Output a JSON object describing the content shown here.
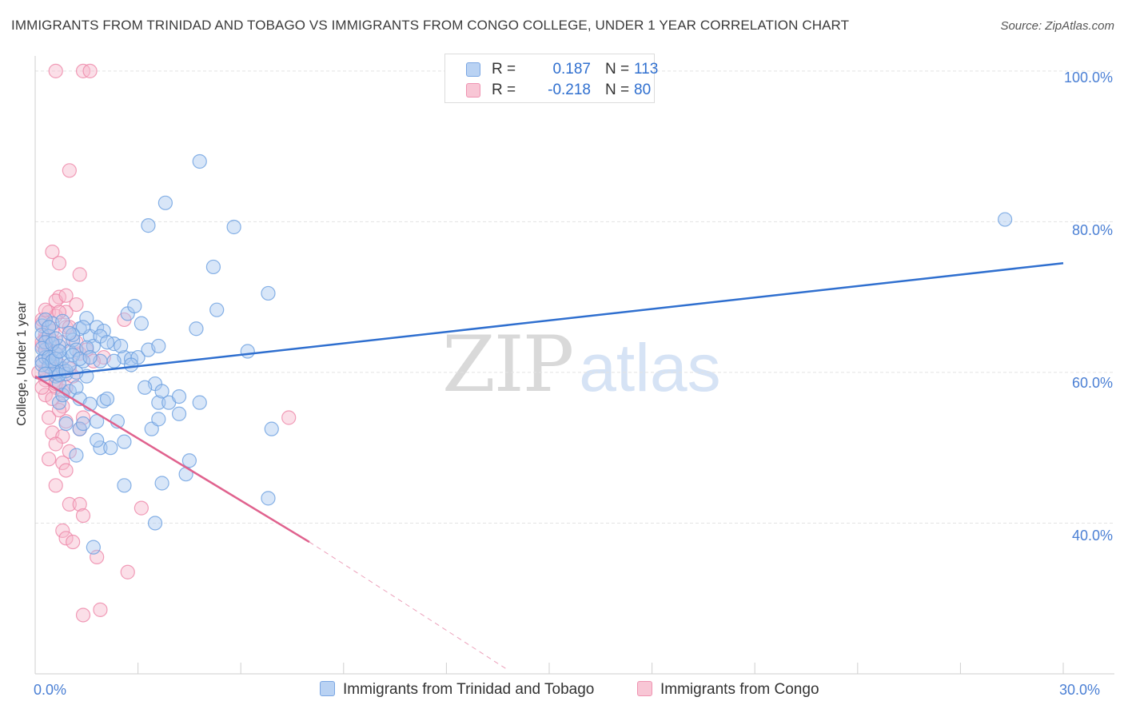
{
  "header": {
    "title": "IMMIGRANTS FROM TRINIDAD AND TOBAGO VS IMMIGRANTS FROM CONGO COLLEGE, UNDER 1 YEAR CORRELATION CHART",
    "source": "Source: ZipAtlas.com"
  },
  "watermark": {
    "zip": "ZIP",
    "atlas": "atlas"
  },
  "legend": {
    "r_label": "R =",
    "n_label": "N =",
    "rows": [
      {
        "r": "0.187",
        "n": "113"
      },
      {
        "r": "-0.218",
        "n": "80"
      }
    ]
  },
  "colors": {
    "blue_fill": "#a8c8f0",
    "blue_stroke": "#6a9fe0",
    "blue_line": "#2f6fcf",
    "pink_fill": "#f6b8cc",
    "pink_stroke": "#ee86a8",
    "pink_line": "#e0628e",
    "tick_text": "#4a7fd4"
  },
  "chart_data": {
    "type": "scatter",
    "title": "IMMIGRANTS FROM TRINIDAD AND TOBAGO VS IMMIGRANTS FROM CONGO COLLEGE, UNDER 1 YEAR CORRELATION CHART",
    "xlabel": "",
    "ylabel": "College, Under 1 year",
    "xlim": [
      0,
      30
    ],
    "ylim": [
      20,
      102
    ],
    "x_tick_labels": [
      "0.0%",
      "30.0%"
    ],
    "y_ticks": [
      40,
      60,
      80,
      100
    ],
    "y_tick_labels": [
      "40.0%",
      "60.0%",
      "80.0%",
      "100.0%"
    ],
    "grid": true,
    "legend_position": "top-center",
    "series": [
      {
        "name": "Immigrants from Trinidad and Tobago",
        "color": "blue",
        "R": 0.187,
        "N": 113,
        "trend": {
          "x": [
            0,
            30
          ],
          "y": [
            59.3,
            74.5
          ]
        },
        "points": [
          [
            0.2,
            66.2
          ],
          [
            0.2,
            65.0
          ],
          [
            0.3,
            63.0
          ],
          [
            0.2,
            61.5
          ],
          [
            0.4,
            64.8
          ],
          [
            0.3,
            62.0
          ],
          [
            0.5,
            61.0
          ],
          [
            0.6,
            59.5
          ],
          [
            0.7,
            58.5
          ],
          [
            0.8,
            60.5
          ],
          [
            0.9,
            59.8
          ],
          [
            0.5,
            66.5
          ],
          [
            0.6,
            62.5
          ],
          [
            0.8,
            61.8
          ],
          [
            1.0,
            62.8
          ],
          [
            1.1,
            64.3
          ],
          [
            1.2,
            63.0
          ],
          [
            1.3,
            65.8
          ],
          [
            1.4,
            61.5
          ],
          [
            1.5,
            59.5
          ],
          [
            1.2,
            60.0
          ],
          [
            1.6,
            64.8
          ],
          [
            1.7,
            63.5
          ],
          [
            1.8,
            66.0
          ],
          [
            1.9,
            61.5
          ],
          [
            2.0,
            65.5
          ],
          [
            1.5,
            67.2
          ],
          [
            2.3,
            63.8
          ],
          [
            2.6,
            62.0
          ],
          [
            2.7,
            67.8
          ],
          [
            2.9,
            68.8
          ],
          [
            3.1,
            66.5
          ],
          [
            2.8,
            61.8
          ],
          [
            3.0,
            62.0
          ],
          [
            3.3,
            79.5
          ],
          [
            3.8,
            82.5
          ],
          [
            5.8,
            79.3
          ],
          [
            4.8,
            88.0
          ],
          [
            5.2,
            74.0
          ],
          [
            5.3,
            68.3
          ],
          [
            6.8,
            70.5
          ],
          [
            4.7,
            65.8
          ],
          [
            6.2,
            62.8
          ],
          [
            3.5,
            58.5
          ],
          [
            3.6,
            56.0
          ],
          [
            3.9,
            56.0
          ],
          [
            4.2,
            56.8
          ],
          [
            4.8,
            56.0
          ],
          [
            3.4,
            52.5
          ],
          [
            3.6,
            53.8
          ],
          [
            3.7,
            45.3
          ],
          [
            4.4,
            46.5
          ],
          [
            4.5,
            48.3
          ],
          [
            3.5,
            40.0
          ],
          [
            2.6,
            50.8
          ],
          [
            1.9,
            50.0
          ],
          [
            2.2,
            50.0
          ],
          [
            1.8,
            51.0
          ],
          [
            1.3,
            52.5
          ],
          [
            1.4,
            53.2
          ],
          [
            1.8,
            53.5
          ],
          [
            2.4,
            53.5
          ],
          [
            1.2,
            49.0
          ],
          [
            2.6,
            45.0
          ],
          [
            6.9,
            52.5
          ],
          [
            6.8,
            43.3
          ],
          [
            0.7,
            56.0
          ],
          [
            0.8,
            57.0
          ],
          [
            1.0,
            57.5
          ],
          [
            1.2,
            58.0
          ],
          [
            1.3,
            56.5
          ],
          [
            1.6,
            55.8
          ],
          [
            2.0,
            56.2
          ],
          [
            2.1,
            56.5
          ],
          [
            3.7,
            57.5
          ],
          [
            4.2,
            54.5
          ],
          [
            0.9,
            53.2
          ],
          [
            0.6,
            60.0
          ],
          [
            0.7,
            63.5
          ],
          [
            0.4,
            60.8
          ],
          [
            1.7,
            36.8
          ],
          [
            28.3,
            80.3
          ],
          [
            3.2,
            58.0
          ],
          [
            0.3,
            64.0
          ],
          [
            0.2,
            63.2
          ],
          [
            0.4,
            62.0
          ],
          [
            0.5,
            61.5
          ],
          [
            0.7,
            59.7
          ],
          [
            0.9,
            60.2
          ],
          [
            1.0,
            61.0
          ],
          [
            1.1,
            62.3
          ],
          [
            1.3,
            61.8
          ],
          [
            1.5,
            63.3
          ],
          [
            1.6,
            62.0
          ],
          [
            1.9,
            64.8
          ],
          [
            2.1,
            64.0
          ],
          [
            2.3,
            61.5
          ],
          [
            2.5,
            63.5
          ],
          [
            2.8,
            61.0
          ],
          [
            3.3,
            63.0
          ],
          [
            3.6,
            63.5
          ],
          [
            1.4,
            66.0
          ],
          [
            1.1,
            65.0
          ],
          [
            0.8,
            66.8
          ],
          [
            0.6,
            64.5
          ],
          [
            0.3,
            67.0
          ],
          [
            0.2,
            61.0
          ],
          [
            0.4,
            66.0
          ],
          [
            0.5,
            63.8
          ],
          [
            0.3,
            59.8
          ],
          [
            0.6,
            61.8
          ],
          [
            0.7,
            62.8
          ],
          [
            1.0,
            65.2
          ]
        ]
      },
      {
        "name": "Immigrants from Congo",
        "color": "pink",
        "R": -0.218,
        "N": 80,
        "trend": {
          "x": [
            0,
            8.0
          ],
          "y": [
            59.5,
            37.5
          ],
          "dashed_to": {
            "x": 13.8,
            "y": 20.5
          }
        },
        "points": [
          [
            0.6,
            100.0
          ],
          [
            1.4,
            100.0
          ],
          [
            1.6,
            100.0
          ],
          [
            1.0,
            86.8
          ],
          [
            0.5,
            76.0
          ],
          [
            0.7,
            74.5
          ],
          [
            1.3,
            73.0
          ],
          [
            0.7,
            70.0
          ],
          [
            1.2,
            69.0
          ],
          [
            0.4,
            68.0
          ],
          [
            0.6,
            67.5
          ],
          [
            0.9,
            68.0
          ],
          [
            0.3,
            65.0
          ],
          [
            0.2,
            66.5
          ],
          [
            0.5,
            64.2
          ],
          [
            0.4,
            62.0
          ],
          [
            0.2,
            61.5
          ],
          [
            0.5,
            60.5
          ],
          [
            0.3,
            59.0
          ],
          [
            0.6,
            58.0
          ],
          [
            0.8,
            57.5
          ],
          [
            0.3,
            57.0
          ],
          [
            0.8,
            55.5
          ],
          [
            0.4,
            54.0
          ],
          [
            0.9,
            53.5
          ],
          [
            1.4,
            54.0
          ],
          [
            1.3,
            52.5
          ],
          [
            0.5,
            52.0
          ],
          [
            0.8,
            51.5
          ],
          [
            0.6,
            50.5
          ],
          [
            1.0,
            49.5
          ],
          [
            0.4,
            48.5
          ],
          [
            0.8,
            48.0
          ],
          [
            0.9,
            47.0
          ],
          [
            0.6,
            45.0
          ],
          [
            1.0,
            42.5
          ],
          [
            1.3,
            42.5
          ],
          [
            1.4,
            41.0
          ],
          [
            0.8,
            39.0
          ],
          [
            0.9,
            38.0
          ],
          [
            1.1,
            37.5
          ],
          [
            1.8,
            35.5
          ],
          [
            2.7,
            33.5
          ],
          [
            1.4,
            27.8
          ],
          [
            1.9,
            28.5
          ],
          [
            3.1,
            42.0
          ],
          [
            2.6,
            67.0
          ],
          [
            7.4,
            54.0
          ],
          [
            2.0,
            62.0
          ],
          [
            1.7,
            61.5
          ],
          [
            1.3,
            62.5
          ],
          [
            1.0,
            60.5
          ],
          [
            0.7,
            61.0
          ],
          [
            0.2,
            63.5
          ],
          [
            0.3,
            64.5
          ],
          [
            0.4,
            62.8
          ],
          [
            0.1,
            60.0
          ],
          [
            0.2,
            58.0
          ],
          [
            0.6,
            58.5
          ],
          [
            0.9,
            58.0
          ],
          [
            1.1,
            59.5
          ],
          [
            0.5,
            56.5
          ],
          [
            0.7,
            55.0
          ],
          [
            0.3,
            63.0
          ],
          [
            0.2,
            67.0
          ],
          [
            0.6,
            69.5
          ],
          [
            0.9,
            66.0
          ],
          [
            1.2,
            64.0
          ],
          [
            0.5,
            65.5
          ],
          [
            0.4,
            61.2
          ],
          [
            0.3,
            60.2
          ],
          [
            0.6,
            62.5
          ],
          [
            0.8,
            64.0
          ],
          [
            1.5,
            63.0
          ],
          [
            0.2,
            64.0
          ],
          [
            0.7,
            68.0
          ],
          [
            1.0,
            66.0
          ],
          [
            0.4,
            66.0
          ],
          [
            0.3,
            68.3
          ],
          [
            0.9,
            70.2
          ]
        ]
      }
    ]
  }
}
